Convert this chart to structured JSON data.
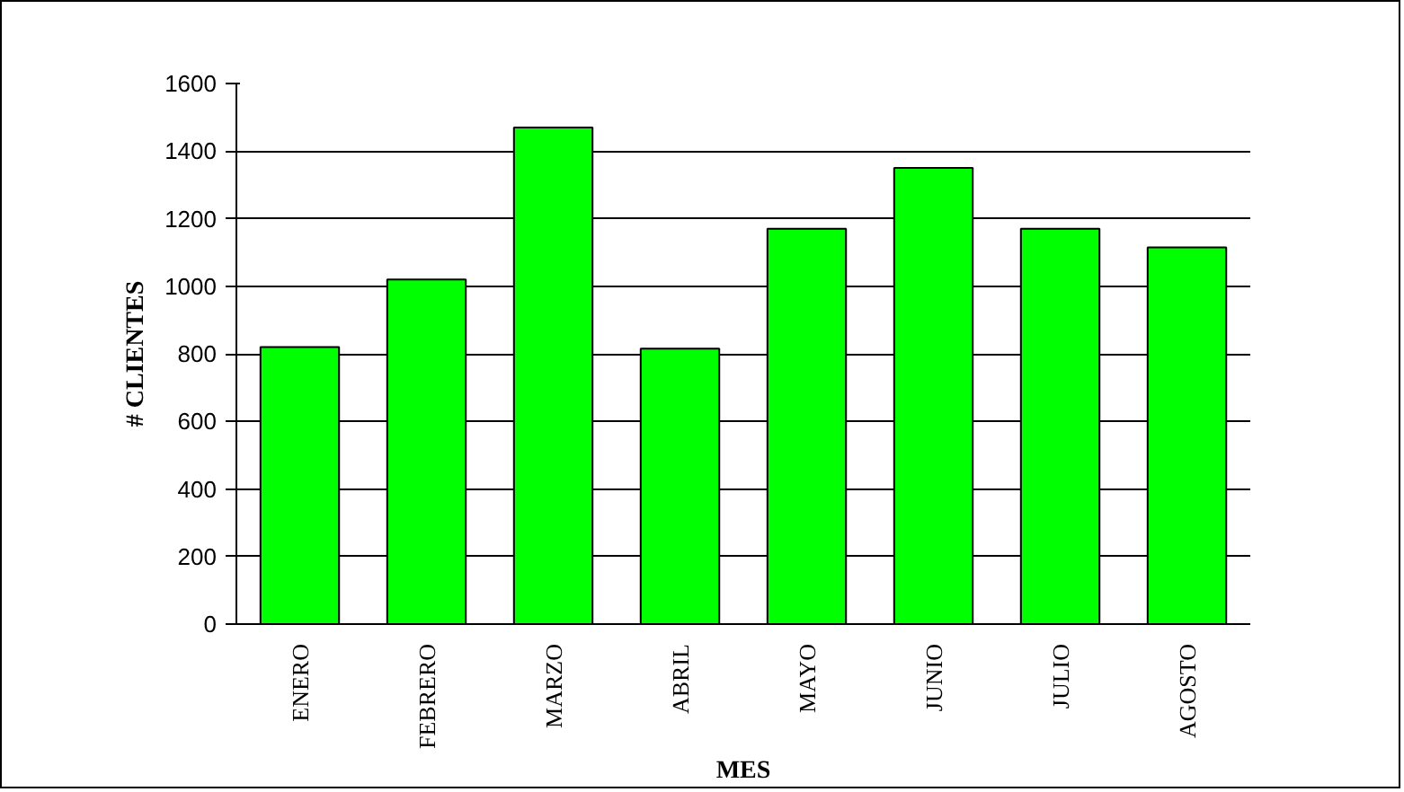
{
  "chart_data": {
    "type": "bar",
    "xlabel": "MES",
    "ylabel": "# CLIENTES",
    "categories": [
      "ENERO",
      "FEBRERO",
      "MARZO",
      "ABRIL",
      "MAYO",
      "JUNIO",
      "JULIO",
      "AGOSTO"
    ],
    "values": [
      820,
      1020,
      1470,
      815,
      1170,
      1350,
      1170,
      1115
    ],
    "color": "#00ff00",
    "ylim": [
      0,
      1600
    ],
    "yticks": [
      0,
      200,
      400,
      600,
      800,
      1000,
      1200,
      1400,
      1600
    ],
    "grid": "y"
  }
}
